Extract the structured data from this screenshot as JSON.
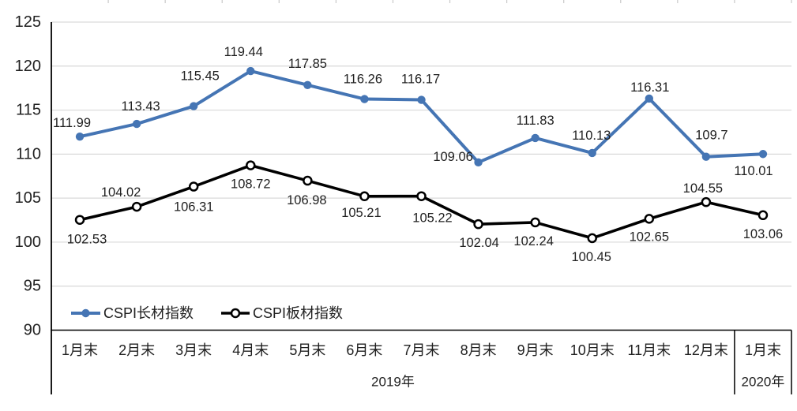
{
  "colors": {
    "long_series": "#4575b4",
    "plate_series": "#000000",
    "gridline": "#d9d9d9",
    "top_tick": "#c9c9c9",
    "axis": "#000000",
    "text": "#212121"
  },
  "chart_data": {
    "type": "line",
    "title": "",
    "categories": [
      "1月末",
      "2月末",
      "3月末",
      "4月末",
      "5月末",
      "6月末",
      "7月末",
      "8月末",
      "9月末",
      "10月末",
      "11月末",
      "12月末",
      "1月末"
    ],
    "x_groups": [
      {
        "label": "2019年",
        "span": 12
      },
      {
        "label": "2020年",
        "span": 1
      }
    ],
    "ylim": [
      90,
      125
    ],
    "ytick_step": 5,
    "ytick_labels": [
      "125",
      "120",
      "115",
      "110",
      "105",
      "100",
      "95",
      "90"
    ],
    "grid": "horizontal",
    "legend_position": "inside-bottom-left",
    "series": [
      {
        "name": "CSPI长材指数",
        "color_key": "long_series",
        "marker": "filled-circle",
        "values": [
          111.99,
          113.43,
          115.45,
          119.44,
          117.85,
          116.26,
          116.17,
          109.06,
          111.83,
          110.13,
          116.31,
          109.7,
          110.01
        ],
        "labels": [
          "111.99",
          "113.43",
          "115.45",
          "119.44",
          "117.85",
          "116.26",
          "116.17",
          "109.06",
          "111.83",
          "110.13",
          "116.31",
          "109.7",
          "110.01"
        ],
        "label_offsets": [
          [
            -10,
            -17
          ],
          [
            5,
            -22
          ],
          [
            8,
            -38
          ],
          [
            -9,
            -24
          ],
          [
            0,
            -27
          ],
          [
            -2,
            -25
          ],
          [
            -1,
            -26
          ],
          [
            -32,
            -7
          ],
          [
            0,
            -22
          ],
          [
            -1,
            -22
          ],
          [
            1,
            -14
          ],
          [
            7,
            -27
          ],
          [
            -12,
            22
          ]
        ]
      },
      {
        "name": "CSPI板材指数",
        "color_key": "plate_series",
        "marker": "open-circle",
        "values": [
          102.53,
          104.02,
          106.31,
          108.72,
          106.98,
          105.21,
          105.22,
          102.04,
          102.24,
          100.45,
          102.65,
          104.55,
          103.06
        ],
        "labels": [
          "102.53",
          "104.02",
          "106.31",
          "108.72",
          "106.98",
          "105.21",
          "105.22",
          "102.04",
          "102.24",
          "100.45",
          "102.65",
          "104.55",
          "103.06"
        ],
        "label_offsets": [
          [
            9,
            25
          ],
          [
            -20,
            -18
          ],
          [
            0,
            26
          ],
          [
            0,
            24
          ],
          [
            -1,
            25
          ],
          [
            -4,
            21
          ],
          [
            14,
            28
          ],
          [
            1,
            24
          ],
          [
            -2,
            24
          ],
          [
            -1,
            24
          ],
          [
            0,
            23
          ],
          [
            -4,
            -17
          ],
          [
            0,
            24
          ]
        ]
      }
    ]
  }
}
